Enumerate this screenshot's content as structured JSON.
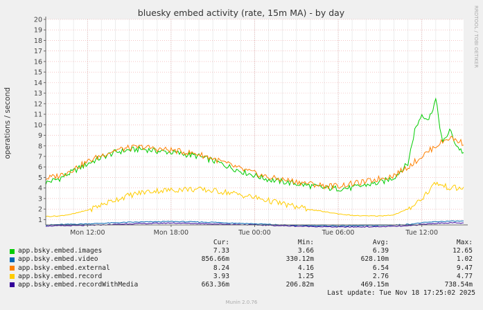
{
  "chart_data": {
    "type": "line",
    "title": "bluesky embed activity (rate, 15m MA) - by day",
    "ylabel": "operations / second",
    "watermark": "RRDTOOL / TOBI OETIKER",
    "ylim": [
      0.5,
      20
    ],
    "yticks": [
      1,
      2,
      3,
      4,
      5,
      6,
      7,
      8,
      9,
      10,
      11,
      12,
      13,
      14,
      15,
      16,
      17,
      18,
      19,
      20
    ],
    "xlim": [
      0,
      30
    ],
    "xtick_labels": [
      {
        "t": 3,
        "label": "Mon 12:00"
      },
      {
        "t": 9,
        "label": "Mon 18:00"
      },
      {
        "t": 15,
        "label": "Tue 00:00"
      },
      {
        "t": 21,
        "label": "Tue 06:00"
      },
      {
        "t": 27,
        "label": "Tue 12:00"
      }
    ],
    "grid": true,
    "series": [
      {
        "name": "app.bsky.embed.images",
        "color": "#00cc00",
        "x": [
          0,
          1,
          2,
          3,
          4,
          5,
          6,
          7,
          8,
          9,
          10,
          11,
          12,
          13,
          14,
          15,
          16,
          17,
          18,
          19,
          20,
          21,
          22,
          23,
          24,
          25,
          26,
          26.5,
          27,
          27.5,
          28,
          28.5,
          29,
          29.5,
          30
        ],
        "values": [
          4.5,
          4.9,
          5.6,
          6.3,
          6.9,
          7.4,
          7.6,
          7.7,
          7.5,
          7.4,
          7.2,
          7.0,
          6.6,
          6.1,
          5.6,
          5.2,
          4.8,
          4.6,
          4.4,
          4.2,
          4.0,
          3.95,
          4.0,
          4.3,
          4.5,
          5.0,
          6.3,
          9.5,
          11.0,
          10.5,
          12.4,
          8.2,
          9.5,
          8.0,
          7.33
        ],
        "cur": "7.33",
        "min": "3.66",
        "avg": "6.39",
        "max": "12.65"
      },
      {
        "name": "app.bsky.embed.video",
        "color": "#0066b3",
        "x": [
          0,
          3,
          6,
          9,
          12,
          15,
          18,
          21,
          24,
          26,
          27,
          28,
          29,
          30
        ],
        "values": [
          0.5,
          0.6,
          0.75,
          0.82,
          0.75,
          0.6,
          0.45,
          0.4,
          0.45,
          0.55,
          0.7,
          0.8,
          0.85,
          0.86
        ],
        "cur": "856.66m",
        "min": "330.12m",
        "avg": "628.10m",
        "max": "1.02"
      },
      {
        "name": "app.bsky.embed.external",
        "color": "#ff8000",
        "x": [
          0,
          1,
          2,
          3,
          4,
          5,
          6,
          7,
          8,
          9,
          10,
          11,
          12,
          13,
          14,
          15,
          16,
          17,
          18,
          19,
          20,
          21,
          22,
          23,
          24,
          25,
          26,
          27,
          28,
          29,
          30
        ],
        "values": [
          4.9,
          5.2,
          5.8,
          6.5,
          7.1,
          7.6,
          7.8,
          7.9,
          7.7,
          7.6,
          7.4,
          7.2,
          6.8,
          6.3,
          5.8,
          5.4,
          5.0,
          4.8,
          4.6,
          4.4,
          4.2,
          4.2,
          4.4,
          4.6,
          4.9,
          5.2,
          6.0,
          7.0,
          8.0,
          8.8,
          8.24
        ],
        "cur": "8.24",
        "min": "4.16",
        "avg": "6.54",
        "max": "9.47"
      },
      {
        "name": "app.bsky.embed.record",
        "color": "#ffcc00",
        "x": [
          0,
          1,
          2,
          3,
          4,
          5,
          6,
          7,
          8,
          9,
          10,
          11,
          12,
          13,
          14,
          15,
          16,
          17,
          18,
          19,
          20,
          21,
          22,
          23,
          24,
          25,
          26,
          27,
          28,
          28.5,
          29,
          30
        ],
        "values": [
          1.3,
          1.35,
          1.55,
          1.9,
          2.4,
          2.9,
          3.3,
          3.6,
          3.75,
          3.8,
          3.9,
          3.85,
          3.75,
          3.6,
          3.35,
          3.1,
          2.8,
          2.5,
          2.2,
          1.95,
          1.75,
          1.55,
          1.4,
          1.35,
          1.35,
          1.45,
          2.0,
          3.0,
          4.5,
          4.2,
          4.05,
          3.93
        ],
        "cur": "3.93",
        "min": "1.25",
        "avg": "2.76",
        "max": "4.77"
      },
      {
        "name": "app.bsky.embed.recordWithMedia",
        "color": "#330099",
        "x": [
          0,
          3,
          6,
          9,
          12,
          15,
          18,
          21,
          24,
          26,
          27,
          28,
          29,
          30
        ],
        "values": [
          0.4,
          0.45,
          0.6,
          0.68,
          0.6,
          0.5,
          0.38,
          0.3,
          0.33,
          0.4,
          0.55,
          0.65,
          0.7,
          0.66
        ],
        "cur": "663.36m",
        "min": "206.82m",
        "avg": "469.15m",
        "max": "738.54m"
      }
    ]
  },
  "legend": {
    "col_cur": "Cur:",
    "col_min": "Min:",
    "col_avg": "Avg:",
    "col_max": "Max:"
  },
  "last_update": "Last update: Tue Nov 18 17:25:02 2025",
  "footer": "Munin 2.0.76"
}
